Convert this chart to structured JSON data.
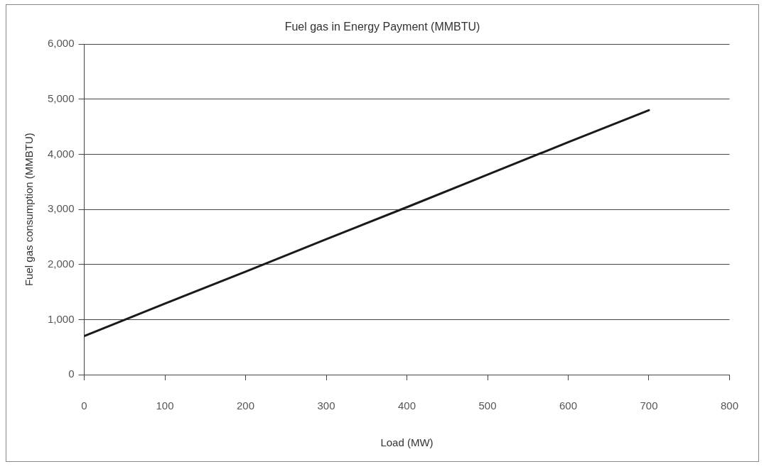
{
  "chart_data": {
    "type": "line",
    "title": "Fuel gas in Energy Payment (MMBTU)",
    "xlabel": "Load (MW)",
    "ylabel": "Fuel gas consumption (MMBTU)",
    "x": [
      0,
      100,
      200,
      300,
      400,
      500,
      600,
      700
    ],
    "series": [
      {
        "color": "#1a1a1a",
        "values": [
          700,
          1290,
          1870,
          2460,
          3040,
          3630,
          4220,
          4800
        ]
      }
    ],
    "xlim": [
      0,
      800
    ],
    "xticks": [
      0,
      100,
      200,
      300,
      400,
      500,
      600,
      700,
      800
    ],
    "ylim": [
      0,
      6000
    ],
    "yticks": [
      0,
      {
        "value": 1000,
        "label": "1,000"
      },
      {
        "value": 2000,
        "label": "2,000"
      },
      {
        "value": 3000,
        "label": "3,000"
      },
      {
        "value": 4000,
        "label": "4,000"
      },
      {
        "value": 5000,
        "label": "5,000"
      },
      {
        "value": 6000,
        "label": "6,000"
      }
    ],
    "grid": "y",
    "legend": false,
    "marker": "none",
    "line_style": "solid"
  }
}
